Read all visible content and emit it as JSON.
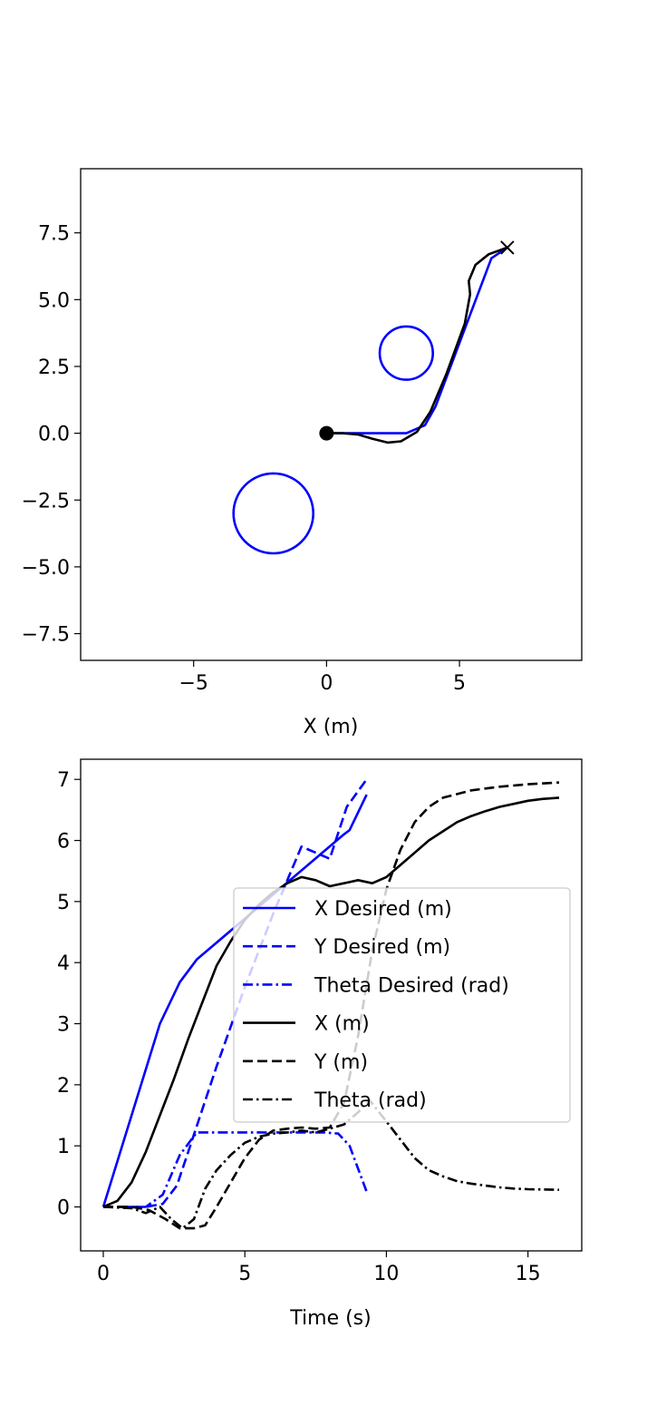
{
  "colors": {
    "desired": "#0000ff",
    "actual": "#000000"
  },
  "chart_data": [
    {
      "type": "scatter",
      "title": "",
      "xlabel": "X (m)",
      "ylabel": "",
      "xlim": [
        -9.25,
        9.6
      ],
      "ylim": [
        -8.5,
        9.9
      ],
      "xticks": [
        {
          "v": -5,
          "label": "−5"
        },
        {
          "v": 0,
          "label": "0"
        },
        {
          "v": 5,
          "label": "5"
        }
      ],
      "yticks": [
        {
          "v": 7.5,
          "label": "7.5"
        },
        {
          "v": 5.0,
          "label": "5.0"
        },
        {
          "v": 2.5,
          "label": "2.5"
        },
        {
          "v": 0.0,
          "label": "0.0"
        },
        {
          "v": -2.5,
          "label": "−2.5"
        },
        {
          "v": -5.0,
          "label": "−5.0"
        },
        {
          "v": -7.5,
          "label": "−7.5"
        }
      ],
      "obstacles": [
        {
          "name": "obstacle-small",
          "cx": 3.0,
          "cy": 3.0,
          "r": 1.0
        },
        {
          "name": "obstacle-large",
          "cx": -2.0,
          "cy": -3.0,
          "r": 1.5
        }
      ],
      "start": {
        "x": 0.0,
        "y": 0.0
      },
      "goal": {
        "x": 6.8,
        "y": 6.95
      },
      "desired_path": [
        [
          0,
          0
        ],
        [
          1.6,
          0
        ],
        [
          3.0,
          0
        ],
        [
          3.7,
          0.3
        ],
        [
          4.1,
          1.0
        ],
        [
          6.2,
          6.55
        ],
        [
          6.8,
          6.95
        ]
      ],
      "actual_path": [
        [
          0,
          0
        ],
        [
          0.6,
          0
        ],
        [
          1.2,
          -0.05
        ],
        [
          1.7,
          -0.2
        ],
        [
          2.3,
          -0.35
        ],
        [
          2.8,
          -0.3
        ],
        [
          3.4,
          0.05
        ],
        [
          3.9,
          0.8
        ],
        [
          4.5,
          2.2
        ],
        [
          5.2,
          4.1
        ],
        [
          5.4,
          5.2
        ],
        [
          5.35,
          5.7
        ],
        [
          5.6,
          6.3
        ],
        [
          6.1,
          6.7
        ],
        [
          6.8,
          6.95
        ]
      ]
    },
    {
      "type": "line",
      "title": "",
      "xlabel": "Time (s)",
      "ylabel": "",
      "xlim": [
        -0.8,
        16.9
      ],
      "ylim": [
        -0.72,
        7.33
      ],
      "xticks": [
        {
          "v": 0,
          "label": "0"
        },
        {
          "v": 5,
          "label": "5"
        },
        {
          "v": 10,
          "label": "10"
        },
        {
          "v": 15,
          "label": "15"
        }
      ],
      "yticks": [
        {
          "v": 0,
          "label": "0"
        },
        {
          "v": 1,
          "label": "1"
        },
        {
          "v": 2,
          "label": "2"
        },
        {
          "v": 3,
          "label": "3"
        },
        {
          "v": 4,
          "label": "4"
        },
        {
          "v": 5,
          "label": "5"
        },
        {
          "v": 6,
          "label": "6"
        },
        {
          "v": 7,
          "label": "7"
        }
      ],
      "legend_position": "center-right",
      "series": [
        {
          "name": "X Desired (m)",
          "color": "desired",
          "dash": "solid",
          "points": [
            [
              0,
              0
            ],
            [
              2.0,
              3.0
            ],
            [
              2.7,
              3.68
            ],
            [
              3.3,
              4.05
            ],
            [
              8.5,
              6.1
            ],
            [
              8.7,
              6.17
            ],
            [
              9.3,
              6.75
            ]
          ]
        },
        {
          "name": "Y Desired (m)",
          "color": "desired",
          "dash": "dashed",
          "points": [
            [
              0,
              0
            ],
            [
              1.5,
              0
            ],
            [
              2.1,
              0.05
            ],
            [
              2.6,
              0.35
            ],
            [
              3.0,
              0.9
            ],
            [
              4.0,
              2.3
            ],
            [
              5.0,
              3.6
            ],
            [
              6.0,
              4.8
            ],
            [
              7.0,
              5.9
            ],
            [
              8.0,
              5.7
            ],
            [
              8.6,
              6.55
            ],
            [
              9.3,
              7.0
            ]
          ]
        },
        {
          "name": "Theta Desired (rad)",
          "color": "desired",
          "dash": "dashdot",
          "points": [
            [
              0,
              0
            ],
            [
              1.5,
              0
            ],
            [
              2.1,
              0.2
            ],
            [
              2.7,
              0.85
            ],
            [
              3.3,
              1.22
            ],
            [
              7.8,
              1.22
            ],
            [
              8.3,
              1.2
            ],
            [
              8.7,
              1.0
            ],
            [
              9.3,
              0.25
            ]
          ]
        },
        {
          "name": "X (m)",
          "color": "actual",
          "dash": "solid",
          "points": [
            [
              0,
              0
            ],
            [
              0.5,
              0.1
            ],
            [
              1.0,
              0.4
            ],
            [
              1.5,
              0.9
            ],
            [
              2.0,
              1.5
            ],
            [
              2.5,
              2.1
            ],
            [
              3.0,
              2.75
            ],
            [
              3.5,
              3.35
            ],
            [
              4.0,
              3.95
            ],
            [
              4.5,
              4.35
            ],
            [
              5.0,
              4.7
            ],
            [
              5.5,
              4.95
            ],
            [
              6.0,
              5.15
            ],
            [
              6.5,
              5.3
            ],
            [
              7.0,
              5.4
            ],
            [
              7.5,
              5.35
            ],
            [
              8.0,
              5.25
            ],
            [
              8.5,
              5.3
            ],
            [
              9.0,
              5.35
            ],
            [
              9.5,
              5.3
            ],
            [
              10.0,
              5.4
            ],
            [
              10.5,
              5.6
            ],
            [
              11.0,
              5.8
            ],
            [
              11.5,
              6.0
            ],
            [
              12.0,
              6.15
            ],
            [
              12.5,
              6.3
            ],
            [
              13.0,
              6.4
            ],
            [
              13.5,
              6.48
            ],
            [
              14.0,
              6.55
            ],
            [
              14.5,
              6.6
            ],
            [
              15.0,
              6.65
            ],
            [
              15.5,
              6.68
            ],
            [
              16.1,
              6.7
            ]
          ]
        },
        {
          "name": "Y (m)",
          "color": "actual",
          "dash": "dashed",
          "points": [
            [
              0,
              0
            ],
            [
              1.0,
              0
            ],
            [
              1.6,
              -0.05
            ],
            [
              2.2,
              -0.2
            ],
            [
              2.7,
              -0.35
            ],
            [
              3.2,
              -0.35
            ],
            [
              3.6,
              -0.3
            ],
            [
              4.0,
              0.0
            ],
            [
              4.5,
              0.4
            ],
            [
              5.0,
              0.8
            ],
            [
              5.5,
              1.1
            ],
            [
              6.0,
              1.25
            ],
            [
              6.5,
              1.28
            ],
            [
              7.0,
              1.3
            ],
            [
              7.5,
              1.28
            ],
            [
              8.0,
              1.3
            ],
            [
              8.5,
              1.7
            ],
            [
              9.0,
              2.8
            ],
            [
              9.5,
              4.2
            ],
            [
              10.0,
              5.2
            ],
            [
              10.5,
              5.85
            ],
            [
              11.0,
              6.3
            ],
            [
              11.5,
              6.55
            ],
            [
              12.0,
              6.7
            ],
            [
              13.0,
              6.82
            ],
            [
              14.0,
              6.88
            ],
            [
              15.0,
              6.92
            ],
            [
              16.1,
              6.95
            ]
          ]
        },
        {
          "name": "Theta (rad)",
          "color": "actual",
          "dash": "dashdot",
          "points": [
            [
              0,
              0
            ],
            [
              1.0,
              -0.02
            ],
            [
              1.5,
              -0.1
            ],
            [
              2.0,
              0.0
            ],
            [
              2.4,
              -0.2
            ],
            [
              2.8,
              -0.35
            ],
            [
              3.2,
              -0.2
            ],
            [
              3.6,
              0.3
            ],
            [
              4.0,
              0.6
            ],
            [
              4.5,
              0.85
            ],
            [
              5.0,
              1.05
            ],
            [
              5.5,
              1.15
            ],
            [
              6.0,
              1.2
            ],
            [
              6.5,
              1.22
            ],
            [
              7.0,
              1.25
            ],
            [
              7.5,
              1.22
            ],
            [
              8.0,
              1.28
            ],
            [
              8.5,
              1.35
            ],
            [
              9.0,
              1.55
            ],
            [
              9.4,
              1.75
            ],
            [
              10.0,
              1.4
            ],
            [
              10.5,
              1.1
            ],
            [
              11.0,
              0.8
            ],
            [
              11.5,
              0.6
            ],
            [
              12.0,
              0.5
            ],
            [
              12.5,
              0.42
            ],
            [
              13.0,
              0.38
            ],
            [
              13.5,
              0.35
            ],
            [
              14.0,
              0.32
            ],
            [
              14.5,
              0.3
            ],
            [
              15.0,
              0.29
            ],
            [
              16.1,
              0.28
            ]
          ]
        }
      ]
    }
  ]
}
